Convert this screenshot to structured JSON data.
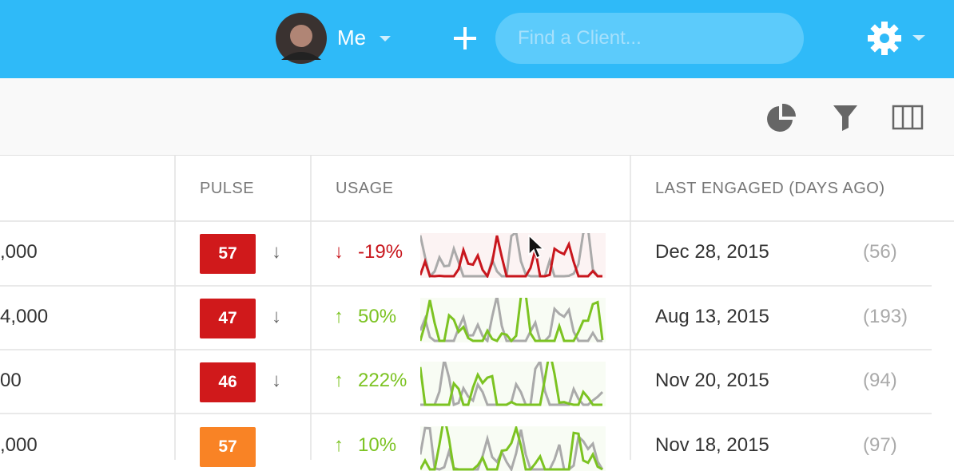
{
  "header": {
    "user": "Me",
    "search_placeholder": "Find a Client..."
  },
  "table": {
    "columns": [
      "PULSE",
      "USAGE",
      "LAST ENGAGED (DAYS AGO)"
    ],
    "rows": [
      {
        "amount": ",000",
        "pulse": "57",
        "pulse_color": "#d0191b",
        "pulse_trend": "↓",
        "usage_arrow": "↓",
        "usage": "-19%",
        "usage_color": "#c8161d",
        "last_engaged": "Dec 28, 2015",
        "days_ago": "(56)"
      },
      {
        "amount": "4,000",
        "pulse": "47",
        "pulse_color": "#d0191b",
        "pulse_trend": "↓",
        "usage_arrow": "↑",
        "usage": "50%",
        "usage_color": "#7cc322",
        "last_engaged": "Aug 13, 2015",
        "days_ago": "(193)"
      },
      {
        "amount": "00",
        "pulse": "46",
        "pulse_color": "#d0191b",
        "pulse_trend": "↓",
        "usage_arrow": "↑",
        "usage": "222%",
        "usage_color": "#7cc322",
        "last_engaged": "Nov 20, 2015",
        "days_ago": "(94)"
      },
      {
        "amount": ",000",
        "pulse": "57",
        "pulse_color": "#f98325",
        "usage_arrow": "↑",
        "usage": "10%",
        "usage_color": "#7cc322",
        "last_engaged": "Nov 18, 2015",
        "days_ago": "(97)"
      }
    ]
  }
}
